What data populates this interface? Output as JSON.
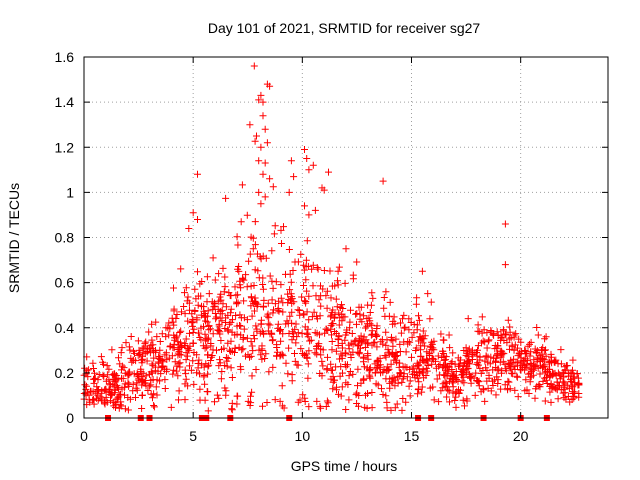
{
  "chart_data": {
    "type": "scatter",
    "title": "Day 101 of 2021, SRMTID for receiver sg27",
    "xlabel": "GPS time / hours",
    "ylabel": "SRMTID / TECUs",
    "xlim": [
      0,
      24
    ],
    "ylim": [
      0,
      1.6
    ],
    "x_ticks": [
      0,
      5,
      10,
      15,
      20
    ],
    "x_tick_labels": [
      "0",
      "5",
      "10",
      "15",
      "20"
    ],
    "y_ticks": [
      0,
      0.2,
      0.4,
      0.6,
      0.8,
      1,
      1.2,
      1.4,
      1.6
    ],
    "y_tick_labels": [
      "0",
      "0.2",
      "0.4",
      "0.6",
      "0.8",
      "1",
      "1.2",
      "1.4",
      "1.6"
    ],
    "grid": true,
    "marker": "plus",
    "color": "#ff0000",
    "gap_markers_x": [
      1.1,
      2.6,
      3.0,
      5.4,
      5.6,
      6.7,
      9.4,
      15.3,
      15.9,
      18.3,
      20.0,
      21.2
    ],
    "seed": 12345,
    "envelope": [
      {
        "x": 0.0,
        "center": 0.13,
        "spread": 0.06
      },
      {
        "x": 1.0,
        "center": 0.14,
        "spread": 0.06
      },
      {
        "x": 2.0,
        "center": 0.17,
        "spread": 0.07
      },
      {
        "x": 3.0,
        "center": 0.22,
        "spread": 0.1
      },
      {
        "x": 4.0,
        "center": 0.3,
        "spread": 0.1
      },
      {
        "x": 5.0,
        "center": 0.35,
        "spread": 0.14
      },
      {
        "x": 6.0,
        "center": 0.38,
        "spread": 0.17
      },
      {
        "x": 7.0,
        "center": 0.42,
        "spread": 0.2
      },
      {
        "x": 8.0,
        "center": 0.48,
        "spread": 0.22
      },
      {
        "x": 9.0,
        "center": 0.44,
        "spread": 0.2
      },
      {
        "x": 10.0,
        "center": 0.4,
        "spread": 0.2
      },
      {
        "x": 11.0,
        "center": 0.36,
        "spread": 0.17
      },
      {
        "x": 12.0,
        "center": 0.33,
        "spread": 0.14
      },
      {
        "x": 13.0,
        "center": 0.3,
        "spread": 0.12
      },
      {
        "x": 14.0,
        "center": 0.27,
        "spread": 0.11
      },
      {
        "x": 15.0,
        "center": 0.28,
        "spread": 0.11
      },
      {
        "x": 16.0,
        "center": 0.26,
        "spread": 0.09
      },
      {
        "x": 17.0,
        "center": 0.17,
        "spread": 0.06
      },
      {
        "x": 18.0,
        "center": 0.25,
        "spread": 0.08
      },
      {
        "x": 19.0,
        "center": 0.28,
        "spread": 0.08
      },
      {
        "x": 20.0,
        "center": 0.24,
        "spread": 0.07
      },
      {
        "x": 21.0,
        "center": 0.23,
        "spread": 0.07
      },
      {
        "x": 22.0,
        "center": 0.17,
        "spread": 0.05
      },
      {
        "x": 22.7,
        "center": 0.14,
        "spread": 0.04
      }
    ],
    "points_per_hour": 75,
    "outliers": [
      {
        "x": 7.8,
        "y": 1.56
      },
      {
        "x": 8.1,
        "y": 1.43
      },
      {
        "x": 8.2,
        "y": 1.4
      },
      {
        "x": 8.0,
        "y": 1.41
      },
      {
        "x": 8.4,
        "y": 1.48
      },
      {
        "x": 8.5,
        "y": 1.47
      },
      {
        "x": 8.2,
        "y": 1.34
      },
      {
        "x": 7.6,
        "y": 1.3
      },
      {
        "x": 8.3,
        "y": 1.28
      },
      {
        "x": 7.9,
        "y": 1.25
      },
      {
        "x": 8.1,
        "y": 1.2
      },
      {
        "x": 8.4,
        "y": 1.22
      },
      {
        "x": 8.0,
        "y": 1.14
      },
      {
        "x": 8.3,
        "y": 1.13
      },
      {
        "x": 9.5,
        "y": 1.14
      },
      {
        "x": 10.1,
        "y": 1.19
      },
      {
        "x": 10.2,
        "y": 1.15
      },
      {
        "x": 10.5,
        "y": 1.12
      },
      {
        "x": 11.2,
        "y": 1.09
      },
      {
        "x": 10.3,
        "y": 1.1
      },
      {
        "x": 8.2,
        "y": 1.08
      },
      {
        "x": 5.2,
        "y": 1.08
      },
      {
        "x": 8.5,
        "y": 1.06
      },
      {
        "x": 9.6,
        "y": 1.07
      },
      {
        "x": 13.7,
        "y": 1.05
      },
      {
        "x": 8.0,
        "y": 1.0
      },
      {
        "x": 8.3,
        "y": 0.98
      },
      {
        "x": 9.4,
        "y": 1.0
      },
      {
        "x": 10.9,
        "y": 1.02
      },
      {
        "x": 11.0,
        "y": 1.01
      },
      {
        "x": 8.1,
        "y": 0.95
      },
      {
        "x": 10.1,
        "y": 0.94
      },
      {
        "x": 10.6,
        "y": 0.92
      },
      {
        "x": 5.0,
        "y": 0.91
      },
      {
        "x": 5.2,
        "y": 0.88
      },
      {
        "x": 7.2,
        "y": 0.87
      },
      {
        "x": 4.8,
        "y": 0.84
      },
      {
        "x": 19.3,
        "y": 0.86
      },
      {
        "x": 19.3,
        "y": 0.68
      },
      {
        "x": 10.3,
        "y": 0.9
      },
      {
        "x": 15.5,
        "y": 0.65
      },
      {
        "x": 12.0,
        "y": 0.75
      }
    ]
  }
}
